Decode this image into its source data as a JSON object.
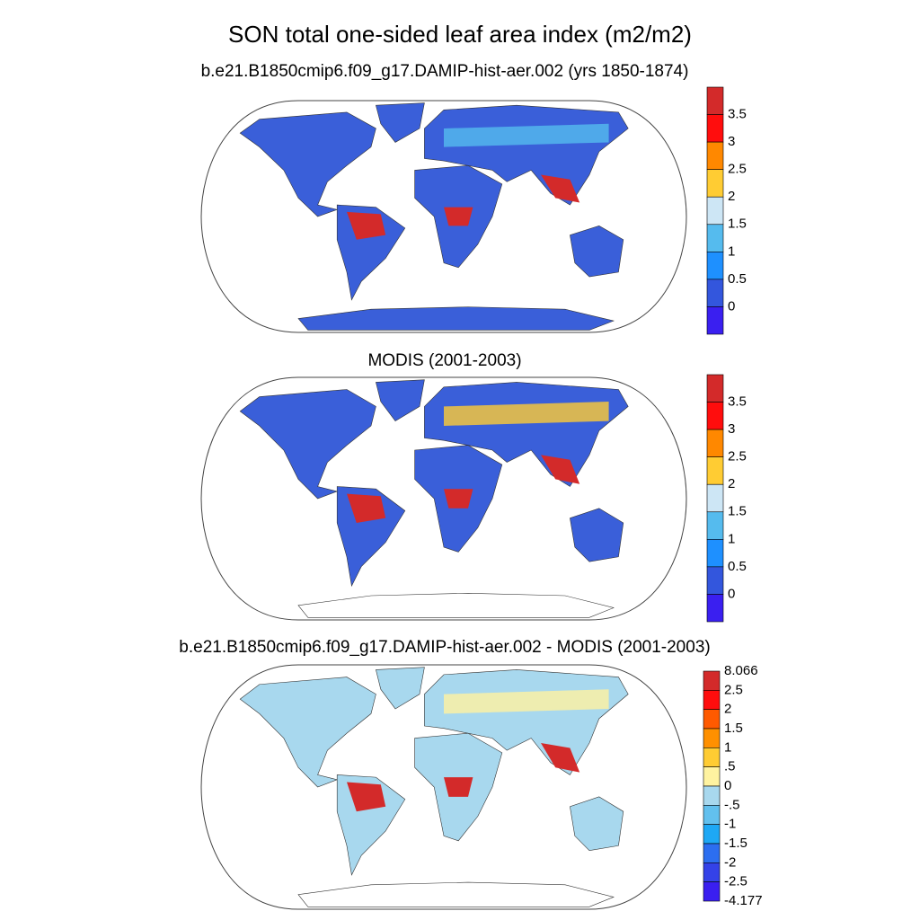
{
  "title": "SON total one-sided leaf area index (m2/m2)",
  "panels": [
    {
      "title": "b.e21.B1850cmip6.f09_g17.DAMIP-hist-aer.002 (yrs 1850-1874)",
      "colorbar": {
        "labels": [
          "3.5",
          "3",
          "2.5",
          "2",
          "1.5",
          "1",
          "0.5",
          "0"
        ],
        "colors": [
          "#d32a2a",
          "#ff0d0d",
          "#ff8800",
          "#ffcc33",
          "#cde6f5",
          "#55bbee",
          "#1e90ff",
          "#3356dd",
          "#3a1ff0"
        ]
      }
    },
    {
      "title": "MODIS (2001-2003)",
      "colorbar": {
        "labels": [
          "3.5",
          "3",
          "2.5",
          "2",
          "1.5",
          "1",
          "0.5",
          "0"
        ],
        "colors": [
          "#d32a2a",
          "#ff0d0d",
          "#ff8800",
          "#ffcc33",
          "#cde6f5",
          "#55bbee",
          "#1e90ff",
          "#3356dd",
          "#3a1ff0"
        ]
      }
    },
    {
      "title": "b.e21.B1850cmip6.f09_g17.DAMIP-hist-aer.002 - MODIS (2001-2003)",
      "colorbar": {
        "labels": [
          "8.066",
          "2.5",
          "2",
          "1.5",
          "1",
          ".5",
          "0",
          "-.5",
          "-1",
          "-1.5",
          "-2",
          "-2.5",
          "-4.177"
        ],
        "colors": [
          "#d32a2a",
          "#ff0d0d",
          "#ff5a00",
          "#ff9000",
          "#ffcc33",
          "#fff3a0",
          "#a8d8ee",
          "#62c0ee",
          "#1ea8f5",
          "#2c6ef0",
          "#3442e8",
          "#3a1ff0"
        ]
      }
    }
  ]
}
